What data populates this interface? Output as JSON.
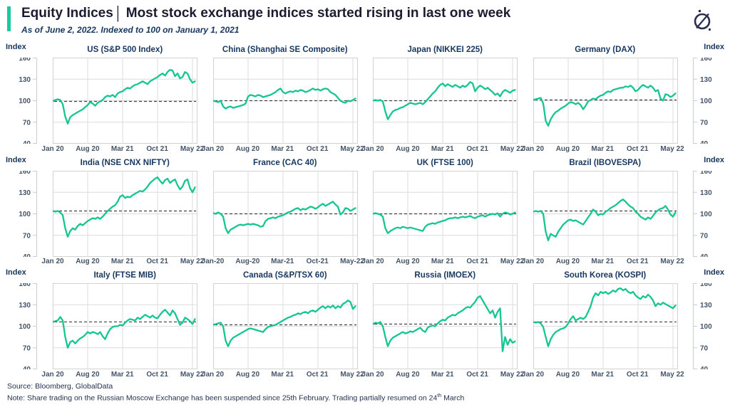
{
  "header": {
    "title": "Equity Indices",
    "separator": "|",
    "headline": "Most stock exchange indices started rising in last one week",
    "subtitle": "As of June 2, 2022. Indexed to 100 on January 1, 2021",
    "accent_color": "#1cc8a0",
    "logo_icon": "globaldata-compass"
  },
  "style": {
    "line_color": "#15c691",
    "grid_color": "#dcdcdc",
    "border_color": "#d2d2d2",
    "axis_color": "#c9cdd4",
    "dash_color": "#404040",
    "title_color": "#17375e",
    "tick_color": "#44546a"
  },
  "axis": {
    "label": "Index",
    "yticks": [
      160,
      130,
      100,
      70,
      40
    ],
    "ylim": [
      40,
      160
    ],
    "xtick_months": [
      0,
      7,
      14,
      21,
      28
    ],
    "x_total_months": 29,
    "x_step_months": 0.5,
    "xticks": [
      "Jan 20",
      "Aug 20",
      "Mar 21",
      "Oct 21",
      "May 22"
    ]
  },
  "footer": {
    "source": "Source: Bloomberg, GlobalData",
    "note_prefix": "Note: Share trading on the Russian Moscow Exchange has been suspended since 25th February. Trading partially resumed on 24",
    "note_sup": "th",
    "note_suffix": " March"
  },
  "chart_data": [
    {
      "type": "line",
      "id": "us",
      "title": "US (S&P 500 Index)",
      "dash_y": 99,
      "xticks": [
        "Jan 20",
        "Aug 20",
        "Mar 21",
        "Oct 21",
        "May 22"
      ],
      "values": [
        99.5,
        101,
        102,
        101,
        95,
        78,
        68,
        77,
        80,
        82,
        84,
        86,
        88,
        91,
        94,
        98,
        96,
        93,
        97,
        99,
        101,
        105,
        107,
        106,
        108,
        105,
        110,
        112,
        113,
        116,
        118,
        117,
        120,
        122,
        123,
        125,
        127,
        125,
        123,
        127,
        129,
        131,
        133,
        136,
        138,
        135,
        140,
        143,
        142,
        134,
        138,
        131,
        133,
        140,
        138,
        130,
        125,
        127
      ]
    },
    {
      "type": "line",
      "id": "china",
      "title": "China (Shanghai SE Composite)",
      "dash_y": 100,
      "xticks": [
        "Jan 20",
        "Aug 20",
        "Mar 21",
        "Oct 21",
        "May 22"
      ],
      "values": [
        100,
        99,
        98,
        100,
        92,
        89,
        91,
        92,
        90,
        91,
        92,
        93,
        94,
        96,
        106,
        108,
        107,
        106,
        108,
        107,
        105,
        106,
        107,
        108,
        110,
        112,
        115,
        117,
        112,
        110,
        112,
        113,
        112,
        114,
        113,
        115,
        114,
        112,
        113,
        115,
        117,
        115,
        116,
        114,
        116,
        117,
        116,
        112,
        110,
        108,
        104,
        100,
        98,
        97,
        100,
        99,
        101,
        103
      ]
    },
    {
      "type": "line",
      "id": "japan",
      "title": "Japan (NIKKEI 225)",
      "dash_y": 100,
      "xticks": [
        "Jan 20",
        "Aug 20",
        "Mar 21",
        "Oct 21",
        "May 22"
      ],
      "values": [
        100,
        101,
        100,
        101,
        99,
        85,
        74,
        80,
        85,
        87,
        88,
        90,
        91,
        93,
        95,
        97,
        96,
        95,
        96,
        97,
        95,
        98,
        102,
        106,
        110,
        113,
        118,
        122,
        124,
        120,
        123,
        121,
        119,
        122,
        120,
        118,
        121,
        119,
        122,
        126,
        124,
        113,
        118,
        121,
        119,
        116,
        118,
        115,
        112,
        108,
        110,
        106,
        112,
        115,
        113,
        111,
        114,
        115
      ]
    },
    {
      "type": "line",
      "id": "germany",
      "title": "Germany (DAX)",
      "dash_y": 101,
      "xticks": [
        "Jan 20",
        "Aug 20",
        "Mar 21",
        "Oct 21",
        "May 22"
      ],
      "values": [
        101,
        102,
        103,
        104,
        96,
        72,
        65,
        74,
        80,
        84,
        86,
        89,
        91,
        93,
        96,
        98,
        97,
        95,
        97,
        94,
        88,
        93,
        99,
        101,
        103,
        102,
        105,
        107,
        108,
        111,
        113,
        112,
        115,
        116,
        117,
        118,
        118,
        120,
        119,
        121,
        118,
        113,
        115,
        119,
        122,
        120,
        118,
        121,
        118,
        113,
        115,
        103,
        100,
        109,
        108,
        105,
        107,
        110
      ]
    },
    {
      "type": "line",
      "id": "india",
      "title": "India (NSE CNX NIFTY)",
      "dash_y": 104,
      "xticks": [
        "Jan 20",
        "Aug 20",
        "Mar 21",
        "Oct 21",
        "May 22"
      ],
      "values": [
        104,
        103,
        104,
        102,
        98,
        80,
        68,
        76,
        80,
        78,
        83,
        86,
        84,
        87,
        90,
        92,
        94,
        93,
        95,
        93,
        96,
        100,
        104,
        107,
        110,
        112,
        117,
        124,
        126,
        122,
        124,
        123,
        126,
        128,
        130,
        132,
        131,
        134,
        138,
        143,
        146,
        149,
        151,
        146,
        142,
        147,
        149,
        143,
        146,
        148,
        140,
        134,
        138,
        146,
        148,
        136,
        130,
        137
      ]
    },
    {
      "type": "line",
      "id": "france",
      "title": "France (CAC 40)",
      "dash_y": 100,
      "xticks": [
        "Jan-20",
        "Aug-20",
        "Mar-21",
        "Oct-21",
        "May-22"
      ],
      "values": [
        101,
        100,
        102,
        100,
        96,
        80,
        73,
        78,
        80,
        82,
        84,
        85,
        84,
        85,
        86,
        85,
        86,
        85,
        84,
        82,
        83,
        90,
        93,
        94,
        95,
        94,
        96,
        97,
        98,
        100,
        102,
        103,
        105,
        107,
        108,
        105,
        107,
        106,
        108,
        110,
        109,
        107,
        109,
        112,
        114,
        111,
        113,
        115,
        117,
        113,
        110,
        99,
        102,
        108,
        107,
        104,
        106,
        108
      ]
    },
    {
      "type": "line",
      "id": "uk",
      "title": "UK (FTSE 100)",
      "dash_y": 100,
      "xticks": [
        "Jan 20",
        "Aug 20",
        "Mar 21",
        "Oct 21",
        "May 22"
      ],
      "values": [
        100,
        101,
        100,
        99,
        96,
        80,
        73,
        76,
        78,
        80,
        81,
        80,
        82,
        81,
        80,
        81,
        80,
        79,
        78,
        77,
        76,
        82,
        85,
        86,
        87,
        86,
        88,
        89,
        90,
        91,
        93,
        94,
        94,
        95,
        94,
        95,
        96,
        95,
        96,
        97,
        95,
        94,
        96,
        97,
        98,
        96,
        98,
        99,
        100,
        99,
        101,
        96,
        100,
        102,
        101,
        99,
        100,
        102
      ]
    },
    {
      "type": "line",
      "id": "brazil",
      "title": "Brazil (IBOVESPA)",
      "dash_y": 104,
      "xticks": [
        "Jan 20",
        "Aug 20",
        "Mar 21",
        "Oct 21",
        "May 22"
      ],
      "values": [
        103,
        104,
        103,
        104,
        100,
        75,
        63,
        72,
        70,
        68,
        75,
        80,
        85,
        88,
        91,
        92,
        90,
        91,
        89,
        87,
        85,
        90,
        95,
        100,
        106,
        103,
        98,
        100,
        99,
        103,
        105,
        108,
        110,
        112,
        115,
        118,
        120,
        117,
        113,
        110,
        108,
        103,
        100,
        96,
        94,
        92,
        95,
        93,
        97,
        102,
        105,
        107,
        108,
        111,
        106,
        99,
        96,
        102
      ]
    },
    {
      "type": "line",
      "id": "italy",
      "title": "Italy (FTSE MIB)",
      "dash_y": 106,
      "xticks": [
        "Jan 20",
        "Aug 20",
        "Mar 21",
        "Oct 21",
        "May 22"
      ],
      "values": [
        106,
        107,
        108,
        113,
        108,
        85,
        70,
        78,
        80,
        76,
        80,
        83,
        85,
        88,
        92,
        90,
        92,
        91,
        89,
        92,
        86,
        82,
        90,
        96,
        99,
        100,
        100,
        102,
        101,
        105,
        108,
        110,
        109,
        108,
        112,
        110,
        113,
        116,
        114,
        112,
        115,
        112,
        111,
        116,
        120,
        123,
        119,
        115,
        122,
        118,
        110,
        102,
        105,
        112,
        110,
        107,
        103,
        110
      ]
    },
    {
      "type": "line",
      "id": "canada",
      "title": "Canada (S&P/TSX 60)",
      "dash_y": 102,
      "xticks": [
        "Jan 20",
        "Aug 20",
        "Mar 21",
        "Oct 21",
        "May 22"
      ],
      "values": [
        102,
        103,
        104,
        105,
        100,
        80,
        72,
        80,
        84,
        86,
        88,
        90,
        92,
        94,
        96,
        97,
        96,
        95,
        94,
        93,
        92,
        96,
        99,
        100,
        101,
        102,
        104,
        106,
        108,
        110,
        112,
        113,
        115,
        116,
        118,
        117,
        119,
        120,
        118,
        121,
        122,
        120,
        123,
        126,
        128,
        125,
        128,
        126,
        129,
        125,
        128,
        126,
        131,
        133,
        136,
        134,
        124,
        128
      ]
    },
    {
      "type": "line",
      "id": "russia",
      "title": "Russia (IMOEX)",
      "dash_y": 103,
      "xticks": [
        "Jan 20",
        "Aug 20",
        "Mar 21",
        "Oct 21",
        "May 22"
      ],
      "values": [
        103,
        105,
        104,
        106,
        100,
        85,
        72,
        80,
        84,
        86,
        88,
        90,
        92,
        90,
        91,
        93,
        92,
        94,
        96,
        98,
        94,
        92,
        98,
        100,
        101,
        100,
        104,
        107,
        109,
        108,
        112,
        114,
        116,
        115,
        118,
        120,
        122,
        125,
        127,
        126,
        130,
        134,
        140,
        142,
        136,
        130,
        124,
        118,
        122,
        112,
        120,
        125,
        65,
        85,
        74,
        82,
        77,
        79
      ]
    },
    {
      "type": "line",
      "id": "south-korea",
      "title": "South Korea (KOSPI)",
      "dash_y": 106,
      "xticks": [
        "Jan 20",
        "Aug 20",
        "Mar 21",
        "Oct 21",
        "May 22"
      ],
      "values": [
        106,
        105,
        106,
        104,
        99,
        85,
        72,
        82,
        88,
        92,
        94,
        96,
        97,
        99,
        104,
        110,
        114,
        108,
        110,
        112,
        110,
        113,
        120,
        128,
        140,
        146,
        143,
        148,
        146,
        148,
        145,
        147,
        150,
        148,
        152,
        153,
        150,
        152,
        148,
        146,
        148,
        143,
        140,
        138,
        142,
        140,
        144,
        141,
        136,
        128,
        132,
        130,
        133,
        131,
        129,
        127,
        125,
        129
      ]
    }
  ]
}
